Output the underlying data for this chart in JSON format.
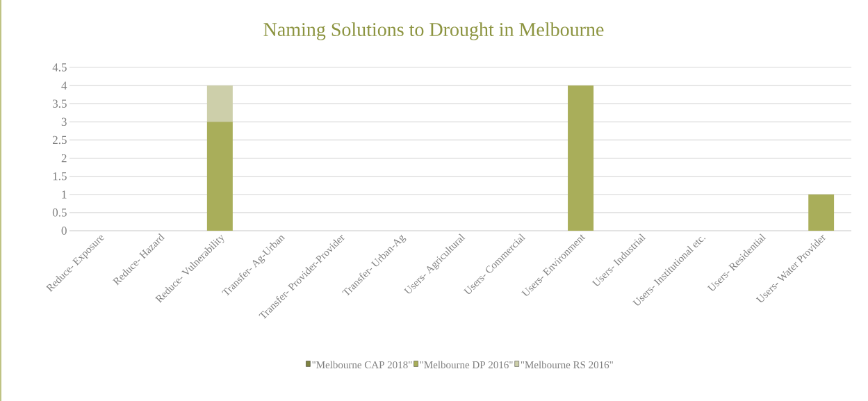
{
  "chart_data": {
    "type": "bar",
    "title": "Naming Solutions to Drought in Melbourne",
    "stacked": true,
    "categories": [
      "Reduce- Exposure",
      "Reduce- Hazard",
      "Reduce- Vulnerability",
      "Transfer- Ag-Urban",
      "Transfer- Provider-Provider",
      "Transfer- Urban-Ag",
      "Users- Agricultural",
      "Users- Commercial",
      "Users- Environment",
      "Users- Industrial",
      "Users- Institutional etc.",
      "Users- Residential",
      "Users- Water Provider"
    ],
    "series": [
      {
        "name": "\"Melbourne CAP 2018\"",
        "color": "#7f8342",
        "values": [
          0,
          0,
          0,
          0,
          0,
          0,
          0,
          0,
          0,
          0,
          0,
          0,
          0
        ]
      },
      {
        "name": "\"Melbourne DP 2016\"",
        "color": "#a9ae5a",
        "values": [
          0,
          0,
          3,
          0,
          0,
          0,
          0,
          0,
          4,
          0,
          0,
          0,
          1
        ]
      },
      {
        "name": "\"Melbourne RS 2016\"",
        "color": "#cdcfaa",
        "values": [
          0,
          0,
          1,
          0,
          0,
          0,
          0,
          0,
          0,
          0,
          0,
          0,
          0
        ]
      }
    ],
    "ylim": [
      0,
      4.5
    ],
    "yticks": [
      0,
      0.5,
      1,
      1.5,
      2,
      2.5,
      3,
      3.5,
      4,
      4.5
    ],
    "grid": "y",
    "legend": "bottom"
  }
}
